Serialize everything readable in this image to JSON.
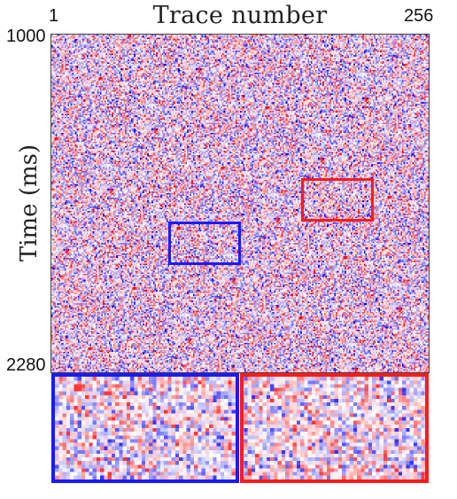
{
  "chart_data": {
    "type": "heatmap",
    "title": "Trace number",
    "ylabel": "Time (ms)",
    "x_tick_labels": [
      "1",
      "256"
    ],
    "y_tick_labels": [
      "1000",
      "2280"
    ],
    "x_range": [
      1,
      256
    ],
    "y_range": [
      1000,
      2280
    ],
    "colormap": [
      "#0000ff",
      "#ffffff",
      "#ff0000"
    ],
    "regions": [
      {
        "color": "#1a1aff",
        "trace_range": [
          80,
          129
        ],
        "time_range": [
          1710,
          1875
        ]
      },
      {
        "color": "#ff1a1a",
        "trace_range": [
          170,
          219
        ],
        "time_range": [
          1545,
          1710
        ]
      }
    ]
  }
}
